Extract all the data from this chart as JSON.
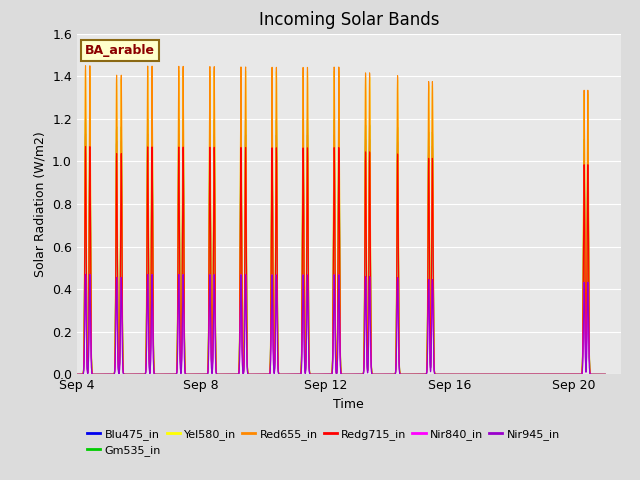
{
  "title": "Incoming Solar Bands",
  "xlabel": "Time",
  "ylabel": "Solar Radiation (W/m2)",
  "ylim": [
    0,
    1.6
  ],
  "background_color": "#dcdcdc",
  "plot_bg_color": "#e8e8e8",
  "annotation_text": "BA_arable",
  "annotation_bg": "#ffffcc",
  "annotation_border": "#8b6914",
  "annotation_text_color": "#8b0000",
  "series": [
    {
      "label": "Blu475_in",
      "color": "#0000ee",
      "peak_scale": 1.13
    },
    {
      "label": "Gm535_in",
      "color": "#00cc00",
      "peak_scale": 1.2
    },
    {
      "label": "Yel580_in",
      "color": "#ffff00",
      "peak_scale": 1.43
    },
    {
      "label": "Red655_in",
      "color": "#ff8800",
      "peak_scale": 1.45
    },
    {
      "label": "Redg715_in",
      "color": "#ff0000",
      "peak_scale": 1.07
    },
    {
      "label": "Nir840_in",
      "color": "#ff00ff",
      "peak_scale": 0.47
    },
    {
      "label": "Nir945_in",
      "color": "#9900cc",
      "peak_scale": 0.47
    }
  ],
  "xtick_labels": [
    "Sep 4",
    "Sep 8",
    "Sep 12",
    "Sep 16",
    "Sep 20"
  ],
  "xtick_positions": [
    3,
    7,
    11,
    15,
    19
  ],
  "ytick_vals": [
    0.0,
    0.2,
    0.4,
    0.6,
    0.8,
    1.0,
    1.2,
    1.4,
    1.6
  ],
  "grid_color": "#ffffff",
  "sunny_days": [
    {
      "day": 3,
      "peaks": [
        0.28,
        0.42
      ],
      "amp": 1.0
    },
    {
      "day": 4,
      "peaks": [
        0.28,
        0.43
      ],
      "amp": 0.97
    },
    {
      "day": 5,
      "peaks": [
        0.28,
        0.42
      ],
      "amp": 1.0
    },
    {
      "day": 6,
      "peaks": [
        0.28,
        0.42
      ],
      "amp": 1.0
    },
    {
      "day": 7,
      "peaks": [
        0.28,
        0.42
      ],
      "amp": 1.0
    },
    {
      "day": 8,
      "peaks": [
        0.28,
        0.43
      ],
      "amp": 1.0
    },
    {
      "day": 9,
      "peaks": [
        0.28,
        0.42
      ],
      "amp": 1.0
    },
    {
      "day": 10,
      "peaks": [
        0.28,
        0.42
      ],
      "amp": 1.0
    },
    {
      "day": 11,
      "peaks": [
        0.28,
        0.43
      ],
      "amp": 1.0
    },
    {
      "day": 12,
      "peaks": [
        0.29,
        0.42
      ],
      "amp": 0.98
    },
    {
      "day": 13,
      "peaks": [
        0.32
      ],
      "amp": 0.97
    },
    {
      "day": 14,
      "peaks": [
        0.32,
        0.44
      ],
      "amp": 0.95
    },
    {
      "day": 19,
      "peaks": [
        0.32,
        0.44
      ],
      "amp": 0.92
    }
  ],
  "peak_sigma": 0.022
}
